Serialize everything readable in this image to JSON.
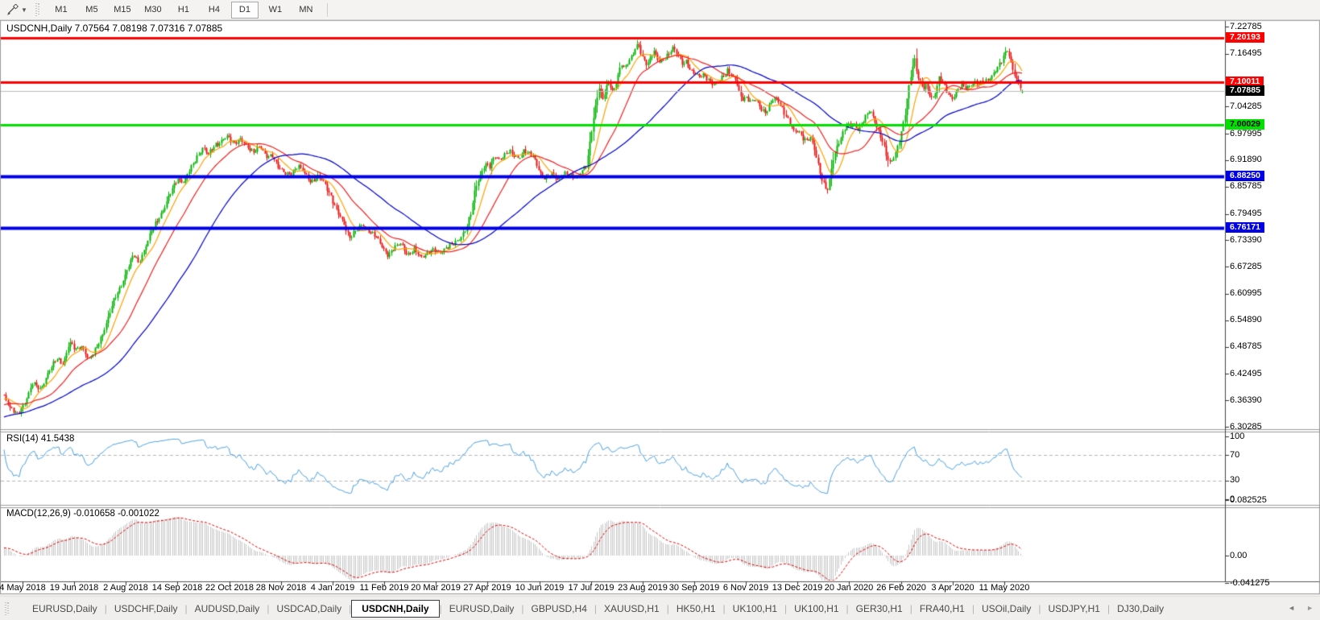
{
  "toolbar": {
    "timeframes": [
      "M1",
      "M5",
      "M15",
      "M30",
      "H1",
      "H4",
      "D1",
      "W1",
      "MN"
    ],
    "active_timeframe": "D1",
    "cursor_tool": "line-studies-tool"
  },
  "chart_window": {
    "title": "USDCNH,Daily  7.07564 7.08198 7.07316 7.07885",
    "rsi_label": "RSI(14) 41.5438",
    "macd_label": "MACD(12,26,9) -0.010658 -0.001022"
  },
  "chart_data": {
    "type": "candlestick",
    "symbol": "USDCNH",
    "timeframe": "Daily",
    "last_bar": {
      "open": 7.07564,
      "high": 7.08198,
      "low": 7.07316,
      "close": 7.07885
    },
    "candle_colors": {
      "up": "#00b400",
      "down": "#ee1111"
    },
    "price_axis_ticks": [
      {
        "label": "7.22785",
        "value": 7.22785
      },
      {
        "label": "7.16495",
        "value": 7.16495
      },
      {
        "label": "7.04285",
        "value": 7.04285
      },
      {
        "label": "6.97995",
        "value": 6.97995
      },
      {
        "label": "6.91890",
        "value": 6.9189
      },
      {
        "label": "6.85785",
        "value": 6.85785
      },
      {
        "label": "6.79495",
        "value": 6.79495
      },
      {
        "label": "6.73390",
        "value": 6.7339
      },
      {
        "label": "6.67285",
        "value": 6.67285
      },
      {
        "label": "6.60995",
        "value": 6.60995
      },
      {
        "label": "6.54890",
        "value": 6.5489
      },
      {
        "label": "6.48785",
        "value": 6.48785
      },
      {
        "label": "6.42495",
        "value": 6.42495
      },
      {
        "label": "6.36390",
        "value": 6.3639
      },
      {
        "label": "6.30285",
        "value": 6.30285
      }
    ],
    "price_level_lines": [
      {
        "label": "7.20193",
        "value": 7.20193,
        "color": "#ff0000",
        "width": 3,
        "text": "#ffffff"
      },
      {
        "label": "7.10011",
        "value": 7.10011,
        "color": "#ff0000",
        "width": 3,
        "text": "#ffffff"
      },
      {
        "label": "7.00029",
        "value": 7.00029,
        "color": "#00e100",
        "width": 3,
        "text": "#000000"
      },
      {
        "label": "6.88250",
        "value": 6.8825,
        "color": "#0000e6",
        "width": 4,
        "text": "#ffffff"
      },
      {
        "label": "6.76171",
        "value": 6.76171,
        "color": "#0000e6",
        "width": 4,
        "text": "#ffffff"
      }
    ],
    "current_price": {
      "label": "7.07885",
      "value": 7.07885,
      "line_color": "#bbbbbb",
      "badge_color": "#000000",
      "text": "#ffffff"
    },
    "date_labels": [
      "4 May 2018",
      "19 Jun 2018",
      "2 Aug 2018",
      "14 Sep 2018",
      "22 Oct 2018",
      "28 Nov 2018",
      "4 Jan 2019",
      "11 Feb 2019",
      "20 Mar 2019",
      "27 Apr 2019",
      "10 Jun 2019",
      "17 Jul 2019",
      "23 Aug 2019",
      "30 Sep 2019",
      "6 Nov 2019",
      "13 Dec 2019",
      "20 Jan 2020",
      "26 Feb 2020",
      "3 Apr 2020",
      "11 May 2020"
    ],
    "moving_averages": [
      {
        "period": 10,
        "color": "#ffa200"
      },
      {
        "period": 25,
        "color": "#f02020"
      },
      {
        "period": 60,
        "color": "#0000cc"
      }
    ],
    "rsi": {
      "period": 14,
      "current": "41.5438",
      "color": "#4aa1e0",
      "levels": [
        70,
        30
      ],
      "axis_ticks": [
        {
          "label": "100",
          "value": 100
        },
        {
          "label": "70",
          "value": 70
        },
        {
          "label": "30",
          "value": 30
        },
        {
          "label": "0",
          "value": 0
        }
      ]
    },
    "macd": {
      "fast": 12,
      "slow": 26,
      "signal": 9,
      "macd_value": "-0.010658",
      "signal_value": "-0.001022",
      "histogram_color": "#c6c6c6",
      "signal_color": "#dd0000",
      "axis_ticks": [
        {
          "label": "0.082525",
          "value": 0.082525
        },
        {
          "label": "0.00",
          "value": 0
        },
        {
          "label": "-0.041275",
          "value": -0.041275
        }
      ]
    },
    "close_path_anchors": [
      [
        5,
        6.373
      ],
      [
        12,
        6.35
      ],
      [
        22,
        6.329
      ],
      [
        30,
        6.356
      ],
      [
        40,
        6.405
      ],
      [
        50,
        6.386
      ],
      [
        60,
        6.433
      ],
      [
        70,
        6.458
      ],
      [
        78,
        6.448
      ],
      [
        86,
        6.5
      ],
      [
        94,
        6.478
      ],
      [
        102,
        6.49
      ],
      [
        110,
        6.458
      ],
      [
        118,
        6.478
      ],
      [
        126,
        6.515
      ],
      [
        134,
        6.555
      ],
      [
        142,
        6.598
      ],
      [
        150,
        6.63
      ],
      [
        158,
        6.668
      ],
      [
        166,
        6.7
      ],
      [
        172,
        6.682
      ],
      [
        180,
        6.718
      ],
      [
        188,
        6.755
      ],
      [
        196,
        6.785
      ],
      [
        204,
        6.81
      ],
      [
        212,
        6.845
      ],
      [
        220,
        6.878
      ],
      [
        228,
        6.868
      ],
      [
        236,
        6.898
      ],
      [
        244,
        6.928
      ],
      [
        252,
        6.948
      ],
      [
        258,
        6.93
      ],
      [
        266,
        6.955
      ],
      [
        274,
        6.962
      ],
      [
        282,
        6.972
      ],
      [
        290,
        6.96
      ],
      [
        298,
        6.968
      ],
      [
        306,
        6.948
      ],
      [
        314,
        6.94
      ],
      [
        322,
        6.952
      ],
      [
        330,
        6.925
      ],
      [
        338,
        6.932
      ],
      [
        346,
        6.9
      ],
      [
        354,
        6.886
      ],
      [
        362,
        6.892
      ],
      [
        370,
        6.905
      ],
      [
        378,
        6.888
      ],
      [
        386,
        6.87
      ],
      [
        394,
        6.88
      ],
      [
        402,
        6.868
      ],
      [
        410,
        6.84
      ],
      [
        418,
        6.8
      ],
      [
        426,
        6.775
      ],
      [
        434,
        6.742
      ],
      [
        442,
        6.756
      ],
      [
        450,
        6.77
      ],
      [
        458,
        6.756
      ],
      [
        466,
        6.742
      ],
      [
        474,
        6.72
      ],
      [
        482,
        6.7
      ],
      [
        490,
        6.716
      ],
      [
        498,
        6.728
      ],
      [
        506,
        6.7
      ],
      [
        514,
        6.71
      ],
      [
        522,
        6.696
      ],
      [
        530,
        6.704
      ],
      [
        538,
        6.71
      ],
      [
        546,
        6.706
      ],
      [
        554,
        6.718
      ],
      [
        562,
        6.722
      ],
      [
        570,
        6.738
      ],
      [
        578,
        6.76
      ],
      [
        584,
        6.792
      ],
      [
        590,
        6.856
      ],
      [
        596,
        6.886
      ],
      [
        602,
        6.91
      ],
      [
        608,
        6.902
      ],
      [
        614,
        6.93
      ],
      [
        620,
        6.922
      ],
      [
        626,
        6.93
      ],
      [
        632,
        6.938
      ],
      [
        638,
        6.93
      ],
      [
        644,
        6.926
      ],
      [
        650,
        6.94
      ],
      [
        656,
        6.932
      ],
      [
        662,
        6.93
      ],
      [
        668,
        6.902
      ],
      [
        674,
        6.876
      ],
      [
        680,
        6.878
      ],
      [
        686,
        6.89
      ],
      [
        692,
        6.876
      ],
      [
        698,
        6.884
      ],
      [
        704,
        6.886
      ],
      [
        710,
        6.884
      ],
      [
        716,
        6.882
      ],
      [
        722,
        6.892
      ],
      [
        728,
        6.906
      ],
      [
        734,
        6.988
      ],
      [
        739,
        7.046
      ],
      [
        744,
        7.088
      ],
      [
        748,
        7.055
      ],
      [
        752,
        7.082
      ],
      [
        756,
        7.102
      ],
      [
        760,
        7.08
      ],
      [
        764,
        7.092
      ],
      [
        768,
        7.122
      ],
      [
        772,
        7.138
      ],
      [
        776,
        7.13
      ],
      [
        780,
        7.152
      ],
      [
        784,
        7.16
      ],
      [
        788,
        7.176
      ],
      [
        792,
        7.188
      ],
      [
        796,
        7.16
      ],
      [
        800,
        7.148
      ],
      [
        804,
        7.142
      ],
      [
        808,
        7.162
      ],
      [
        812,
        7.172
      ],
      [
        816,
        7.15
      ],
      [
        820,
        7.142
      ],
      [
        824,
        7.152
      ],
      [
        828,
        7.162
      ],
      [
        832,
        7.172
      ],
      [
        836,
        7.18
      ],
      [
        840,
        7.164
      ],
      [
        844,
        7.15
      ],
      [
        848,
        7.14
      ],
      [
        852,
        7.15
      ],
      [
        856,
        7.13
      ],
      [
        862,
        7.118
      ],
      [
        868,
        7.11
      ],
      [
        874,
        7.12
      ],
      [
        880,
        7.104
      ],
      [
        886,
        7.09
      ],
      [
        892,
        7.1
      ],
      [
        898,
        7.116
      ],
      [
        903,
        7.128
      ],
      [
        908,
        7.116
      ],
      [
        914,
        7.098
      ],
      [
        920,
        7.062
      ],
      [
        926,
        7.066
      ],
      [
        932,
        7.052
      ],
      [
        938,
        7.058
      ],
      [
        944,
        7.042
      ],
      [
        950,
        7.03
      ],
      [
        956,
        7.046
      ],
      [
        961,
        7.062
      ],
      [
        966,
        7.058
      ],
      [
        971,
        7.04
      ],
      [
        976,
        7.02
      ],
      [
        981,
        7.0
      ],
      [
        986,
        6.982
      ],
      [
        991,
        6.99
      ],
      [
        996,
        6.974
      ],
      [
        1001,
        6.962
      ],
      [
        1006,
        6.97
      ],
      [
        1011,
        6.944
      ],
      [
        1015,
        6.916
      ],
      [
        1019,
        6.884
      ],
      [
        1023,
        6.862
      ],
      [
        1027,
        6.846
      ],
      [
        1030,
        6.872
      ],
      [
        1033,
        6.91
      ],
      [
        1036,
        6.932
      ],
      [
        1040,
        6.958
      ],
      [
        1044,
        6.972
      ],
      [
        1048,
        6.99
      ],
      [
        1052,
        7.0
      ],
      [
        1056,
        6.996
      ],
      [
        1060,
        7.004
      ],
      [
        1064,
        6.992
      ],
      [
        1068,
        7.0
      ],
      [
        1072,
        7.01
      ],
      [
        1076,
        7.022
      ],
      [
        1080,
        7.034
      ],
      [
        1084,
        7.02
      ],
      [
        1088,
        7.0
      ],
      [
        1092,
        6.98
      ],
      [
        1096,
        6.958
      ],
      [
        1100,
        6.93
      ],
      [
        1104,
        6.912
      ],
      [
        1108,
        6.922
      ],
      [
        1112,
        6.94
      ],
      [
        1116,
        6.962
      ],
      [
        1120,
        6.99
      ],
      [
        1124,
        7.03
      ],
      [
        1128,
        7.088
      ],
      [
        1132,
        7.13
      ],
      [
        1135,
        7.158
      ],
      [
        1138,
        7.122
      ],
      [
        1142,
        7.1
      ],
      [
        1146,
        7.082
      ],
      [
        1150,
        7.092
      ],
      [
        1154,
        7.072
      ],
      [
        1158,
        7.062
      ],
      [
        1162,
        7.082
      ],
      [
        1166,
        7.108
      ],
      [
        1170,
        7.098
      ],
      [
        1174,
        7.082
      ],
      [
        1178,
        7.07
      ],
      [
        1182,
        7.062
      ],
      [
        1186,
        7.074
      ],
      [
        1190,
        7.082
      ],
      [
        1194,
        7.09
      ],
      [
        1198,
        7.086
      ],
      [
        1202,
        7.09
      ],
      [
        1206,
        7.096
      ],
      [
        1210,
        7.1
      ],
      [
        1214,
        7.092
      ],
      [
        1218,
        7.096
      ],
      [
        1222,
        7.102
      ],
      [
        1226,
        7.106
      ],
      [
        1230,
        7.112
      ],
      [
        1234,
        7.12
      ],
      [
        1238,
        7.13
      ],
      [
        1242,
        7.142
      ],
      [
        1246,
        7.162
      ],
      [
        1250,
        7.178
      ],
      [
        1254,
        7.152
      ],
      [
        1258,
        7.122
      ],
      [
        1262,
        7.102
      ],
      [
        1266,
        7.088
      ],
      [
        1270,
        7.0789
      ]
    ]
  },
  "tabs": {
    "items": [
      {
        "label": "EURUSD,Daily",
        "active": false
      },
      {
        "label": "USDCHF,Daily",
        "active": false
      },
      {
        "label": "AUDUSD,Daily",
        "active": false
      },
      {
        "label": "USDCAD,Daily",
        "active": false
      },
      {
        "label": "USDCNH,Daily",
        "active": true
      },
      {
        "label": "EURUSD,Daily",
        "active": false
      },
      {
        "label": "GBPUSD,H4",
        "active": false
      },
      {
        "label": "XAUUSD,H1",
        "active": false
      },
      {
        "label": "HK50,H1",
        "active": false
      },
      {
        "label": "UK100,H1",
        "active": false
      },
      {
        "label": "UK100,H1",
        "active": false
      },
      {
        "label": "GER30,H1",
        "active": false
      },
      {
        "label": "FRA40,H1",
        "active": false
      },
      {
        "label": "USOil,Daily",
        "active": false
      },
      {
        "label": "USDJPY,H1",
        "active": false
      },
      {
        "label": "DJ30,Daily",
        "active": false
      }
    ]
  }
}
